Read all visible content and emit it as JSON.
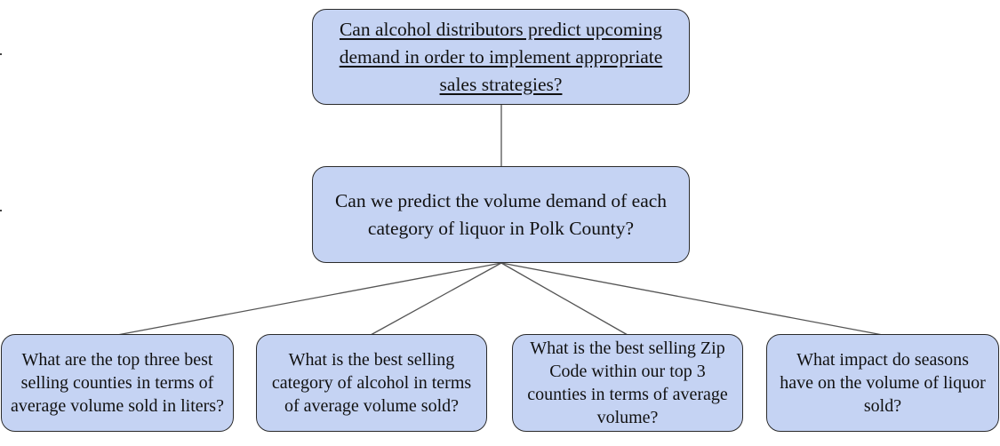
{
  "diagram": {
    "root": {
      "text": "Can alcohol distributors predict upcoming demand in order to implement appropriate sales strategies?"
    },
    "middle": {
      "text": "Can we predict the volume demand of each category of liquor in Polk County?"
    },
    "leaves": [
      {
        "text": "What are the top three best selling counties in terms of average volume sold in liters?"
      },
      {
        "text": "What is the best selling category of alcohol in terms of average volume sold?"
      },
      {
        "text": "What is the best selling Zip Code within our top 3 counties in terms of average volume?"
      },
      {
        "text": "What impact do seasons have on the volume of liquor sold?"
      }
    ]
  },
  "colors": {
    "node_fill": "#c5d3f3",
    "node_border": "#2b2b2b",
    "connector": "#555555"
  }
}
